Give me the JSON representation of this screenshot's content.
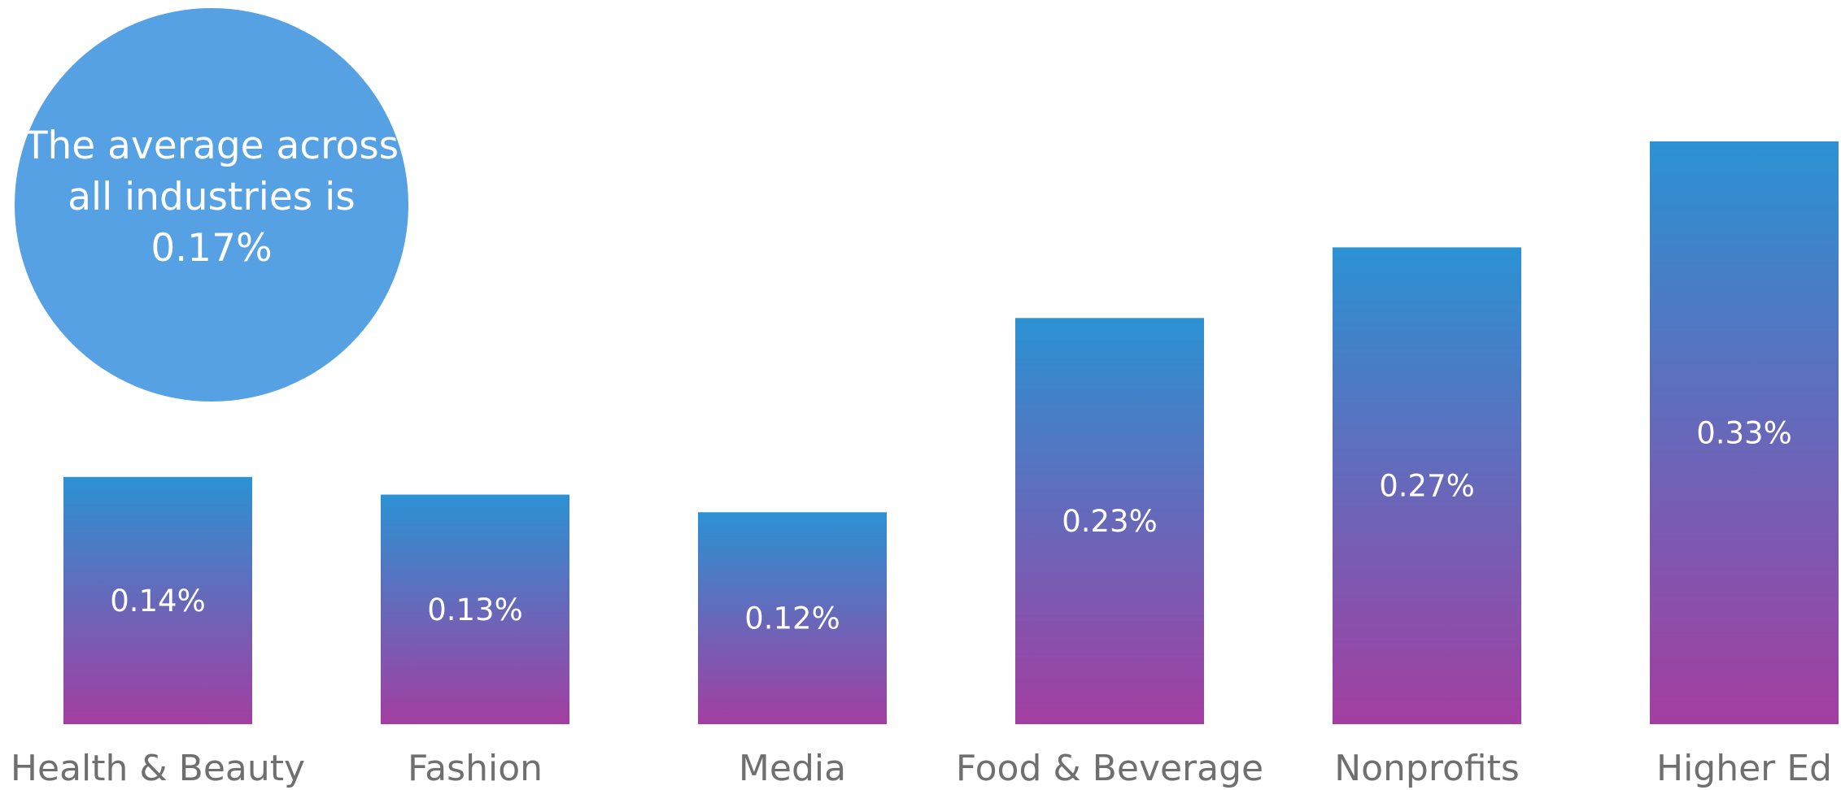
{
  "colors": {
    "bar_top": "#2b92d3",
    "bar_bottom": "#a33ea1",
    "callout": "#55a1e3",
    "label": "#6f6f6f"
  },
  "callout": {
    "text": "The average across all industries is 0.17%"
  },
  "chart_data": {
    "type": "bar",
    "categories": [
      "Health & Beauty",
      "Fashion",
      "Media",
      "Food & Beverage",
      "Nonprofits",
      "Higher Ed"
    ],
    "values": [
      0.14,
      0.13,
      0.12,
      0.23,
      0.27,
      0.33
    ],
    "value_labels": [
      "0.14%",
      "0.13%",
      "0.12%",
      "0.23%",
      "0.27%",
      "0.33%"
    ],
    "annotation": "The average across all industries is 0.17%",
    "ylim": [
      0,
      0.33
    ],
    "grid": false,
    "legend": "none",
    "title": "",
    "xlabel": "",
    "ylabel": ""
  }
}
